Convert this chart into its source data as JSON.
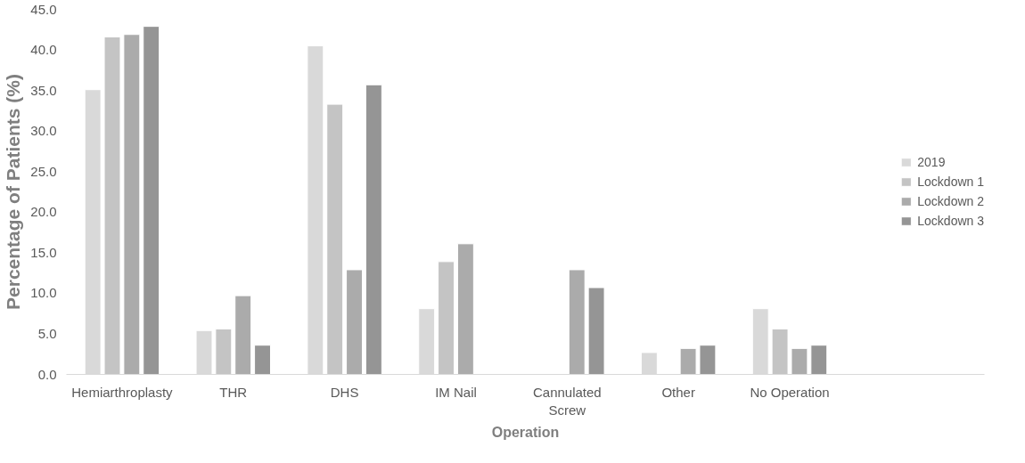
{
  "chart_data": {
    "type": "bar",
    "xlabel": "Operation",
    "ylabel": "Percentage of Patients (%)",
    "categories": [
      "Hemiarthroplasty",
      "THR",
      "DHS",
      "IM Nail",
      "Cannulated Screw",
      "Other",
      "No Operation"
    ],
    "series": [
      {
        "name": "2019",
        "color": "#d9d9d9",
        "values": [
          35.1,
          5.4,
          40.5,
          8.1,
          null,
          2.7,
          8.1
        ]
      },
      {
        "name": "Lockdown 1",
        "color": "#c4c4c4",
        "values": [
          41.6,
          5.6,
          33.3,
          13.9,
          null,
          null,
          5.6
        ]
      },
      {
        "name": "Lockdown 2",
        "color": "#ababab",
        "values": [
          41.9,
          9.7,
          12.9,
          16.1,
          12.9,
          3.2,
          3.2
        ]
      },
      {
        "name": "Lockdown 3",
        "color": "#959595",
        "values": [
          42.9,
          3.6,
          35.7,
          null,
          10.7,
          3.6,
          3.6
        ]
      }
    ],
    "ylim": [
      0,
      45
    ],
    "yticks": [
      {
        "value": 0,
        "label": "0.0"
      },
      {
        "value": 5,
        "label": "5.0"
      },
      {
        "value": 10,
        "label": "10.0"
      },
      {
        "value": 15,
        "label": "15.0"
      },
      {
        "value": 20,
        "label": "20.0"
      },
      {
        "value": 25,
        "label": "25.0"
      },
      {
        "value": 30,
        "label": "30.0"
      },
      {
        "value": 35,
        "label": "35.0"
      },
      {
        "value": 40,
        "label": "40.0"
      },
      {
        "value": 45,
        "label": "45.0"
      }
    ],
    "grid": false,
    "legend": "right"
  }
}
